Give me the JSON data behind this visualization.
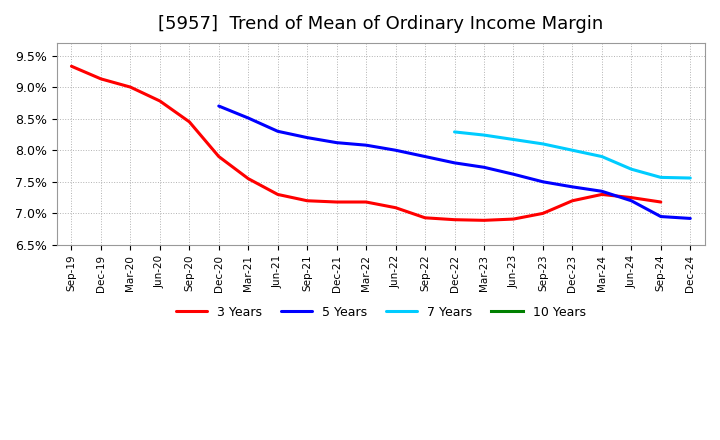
{
  "title": "[5957]  Trend of Mean of Ordinary Income Margin",
  "ylim": [
    0.065,
    0.097
  ],
  "yticks": [
    0.065,
    0.07,
    0.075,
    0.08,
    0.085,
    0.09,
    0.095
  ],
  "ytick_labels": [
    "6.5%",
    "7.0%",
    "7.5%",
    "8.0%",
    "8.5%",
    "9.0%",
    "9.5%"
  ],
  "x_labels": [
    "Sep-19",
    "Dec-19",
    "Mar-20",
    "Jun-20",
    "Sep-20",
    "Dec-20",
    "Mar-21",
    "Jun-21",
    "Sep-21",
    "Dec-21",
    "Mar-22",
    "Jun-22",
    "Sep-22",
    "Dec-22",
    "Mar-23",
    "Jun-23",
    "Sep-23",
    "Dec-23",
    "Mar-24",
    "Jun-24",
    "Sep-24",
    "Dec-24"
  ],
  "series_3y": {
    "label": "3 Years",
    "color": "#FF0000",
    "x": [
      0,
      1,
      2,
      3,
      4,
      5,
      6,
      7,
      8,
      9,
      10,
      11,
      12,
      13,
      14,
      15,
      16,
      17,
      18,
      19,
      20
    ],
    "y": [
      0.0933,
      0.0913,
      0.09,
      0.0878,
      0.0845,
      0.079,
      0.0755,
      0.073,
      0.072,
      0.0718,
      0.0718,
      0.0709,
      0.0693,
      0.069,
      0.0689,
      0.0691,
      0.07,
      0.072,
      0.073,
      0.0725,
      0.0718
    ]
  },
  "series_5y": {
    "label": "5 Years",
    "color": "#0000FF",
    "x": [
      5,
      6,
      7,
      8,
      9,
      10,
      11,
      12,
      13,
      14,
      15,
      16,
      17,
      18,
      19,
      20,
      21
    ],
    "y": [
      0.087,
      0.0851,
      0.083,
      0.082,
      0.0812,
      0.0808,
      0.08,
      0.079,
      0.078,
      0.0773,
      0.0762,
      0.075,
      0.0742,
      0.0735,
      0.072,
      0.0695,
      0.0692
    ]
  },
  "series_7y": {
    "label": "7 Years",
    "color": "#00CCFF",
    "x": [
      13,
      14,
      15,
      16,
      17,
      18,
      19,
      20,
      21
    ],
    "y": [
      0.0829,
      0.0824,
      0.0817,
      0.081,
      0.08,
      0.079,
      0.077,
      0.0757,
      0.0756
    ]
  },
  "series_10y": {
    "label": "10 Years",
    "color": "#008000",
    "x": [],
    "y": []
  },
  "background_color": "#ffffff",
  "grid_color": "#aaaaaa",
  "title_fontsize": 13,
  "legend_colors": [
    "#FF0000",
    "#0000FF",
    "#00CCFF",
    "#008000"
  ]
}
